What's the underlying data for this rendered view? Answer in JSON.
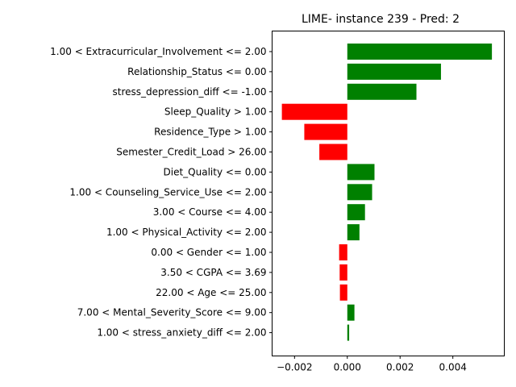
{
  "chart_data": {
    "type": "bar",
    "orientation": "horizontal",
    "title": "LIME- instance 239 - Pred: 2",
    "xlabel": "",
    "ylabel": "",
    "xlim": [
      -0.00285,
      0.00595
    ],
    "xticks": [
      -0.002,
      0.0,
      0.002,
      0.004
    ],
    "xtick_labels": [
      "−0.002",
      "0.000",
      "0.002",
      "0.004"
    ],
    "grid": false,
    "colors": {
      "positive": "#008000",
      "negative": "#ff0000"
    },
    "categories": [
      "1.00 < Extracurricular_Involvement <= 2.00",
      "Relationship_Status <= 0.00",
      "stress_depression_diff <= -1.00",
      "Sleep_Quality > 1.00",
      "Residence_Type > 1.00",
      "Semester_Credit_Load > 26.00",
      "Diet_Quality <= 0.00",
      "1.00 < Counseling_Service_Use <= 2.00",
      "3.00 < Course <= 4.00",
      "1.00 < Physical_Activity <= 2.00",
      "0.00 < Gender <= 1.00",
      "3.50 < CGPA <= 3.69",
      "22.00 < Age <= 25.00",
      "7.00 < Mental_Severity_Score <= 9.00",
      "1.00 < stress_anxiety_diff <= 2.00"
    ],
    "values": [
      0.00548,
      0.00355,
      0.00262,
      -0.00248,
      -0.00163,
      -0.00106,
      0.00103,
      0.00094,
      0.00067,
      0.00046,
      -0.00031,
      -0.00029,
      -0.00028,
      0.00027,
      7e-05
    ]
  }
}
